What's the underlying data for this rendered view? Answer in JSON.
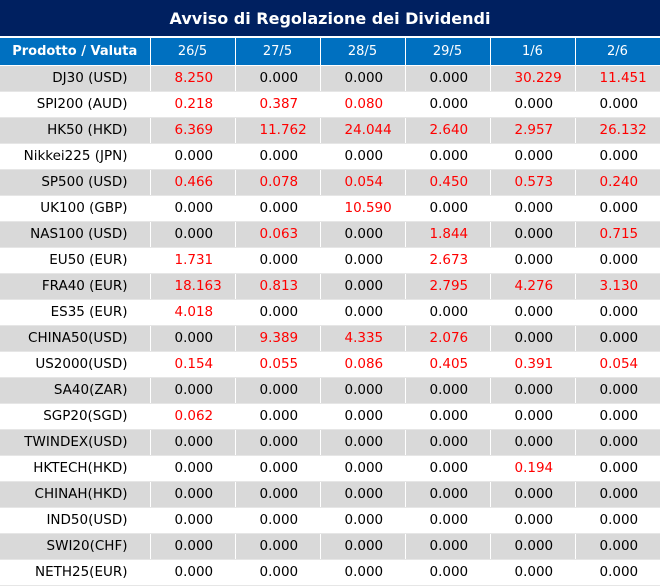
{
  "title": "Avviso di Regolazione dei Dividendi",
  "colors": {
    "title_bg": "#002060",
    "header_bg": "#0070c0",
    "shade_row": "#d9d9d9",
    "positive_value": "#ff0000"
  },
  "headers": [
    "Prodotto / Valuta",
    "26/5",
    "27/5",
    "28/5",
    "29/5",
    "1/6",
    "2/6"
  ],
  "rows": [
    {
      "name": "DJ30 (USD)",
      "values": [
        "8.250",
        "0.000",
        "0.000",
        "0.000",
        "30.229",
        "11.451"
      ],
      "red": [
        true,
        false,
        false,
        false,
        true,
        true
      ]
    },
    {
      "name": "SPI200 (AUD)",
      "values": [
        "0.218",
        "0.387",
        "0.080",
        "0.000",
        "0.000",
        "0.000"
      ],
      "red": [
        true,
        true,
        true,
        false,
        false,
        false
      ]
    },
    {
      "name": "HK50 (HKD)",
      "values": [
        "6.369",
        "11.762",
        "24.044",
        "2.640",
        "2.957",
        "26.132"
      ],
      "red": [
        true,
        true,
        true,
        true,
        true,
        true
      ]
    },
    {
      "name": "Nikkei225 (JPN)",
      "values": [
        "0.000",
        "0.000",
        "0.000",
        "0.000",
        "0.000",
        "0.000"
      ],
      "red": [
        false,
        false,
        false,
        false,
        false,
        false
      ]
    },
    {
      "name": "SP500 (USD)",
      "values": [
        "0.466",
        "0.078",
        "0.054",
        "0.450",
        "0.573",
        "0.240"
      ],
      "red": [
        true,
        true,
        true,
        true,
        true,
        true
      ]
    },
    {
      "name": "UK100 (GBP)",
      "values": [
        "0.000",
        "0.000",
        "10.590",
        "0.000",
        "0.000",
        "0.000"
      ],
      "red": [
        false,
        false,
        true,
        false,
        false,
        false
      ]
    },
    {
      "name": "NAS100 (USD)",
      "values": [
        "0.000",
        "0.063",
        "0.000",
        "1.844",
        "0.000",
        "0.715"
      ],
      "red": [
        false,
        true,
        false,
        true,
        false,
        true
      ]
    },
    {
      "name": "EU50 (EUR)",
      "values": [
        "1.731",
        "0.000",
        "0.000",
        "2.673",
        "0.000",
        "0.000"
      ],
      "red": [
        true,
        false,
        false,
        true,
        false,
        false
      ]
    },
    {
      "name": "FRA40 (EUR)",
      "values": [
        "18.163",
        "0.813",
        "0.000",
        "2.795",
        "4.276",
        "3.130"
      ],
      "red": [
        true,
        true,
        false,
        true,
        true,
        true
      ]
    },
    {
      "name": "ES35 (EUR)",
      "values": [
        "4.018",
        "0.000",
        "0.000",
        "0.000",
        "0.000",
        "0.000"
      ],
      "red": [
        true,
        false,
        false,
        false,
        false,
        false
      ]
    },
    {
      "name": "CHINA50(USD)",
      "values": [
        "0.000",
        "9.389",
        "4.335",
        "2.076",
        "0.000",
        "0.000"
      ],
      "red": [
        false,
        true,
        true,
        true,
        false,
        false
      ]
    },
    {
      "name": "US2000(USD)",
      "values": [
        "0.154",
        "0.055",
        "0.086",
        "0.405",
        "0.391",
        "0.054"
      ],
      "red": [
        true,
        true,
        true,
        true,
        true,
        true
      ]
    },
    {
      "name": "SA40(ZAR)",
      "values": [
        "0.000",
        "0.000",
        "0.000",
        "0.000",
        "0.000",
        "0.000"
      ],
      "red": [
        false,
        false,
        false,
        false,
        false,
        false
      ]
    },
    {
      "name": "SGP20(SGD)",
      "values": [
        "0.062",
        "0.000",
        "0.000",
        "0.000",
        "0.000",
        "0.000"
      ],
      "red": [
        true,
        false,
        false,
        false,
        false,
        false
      ]
    },
    {
      "name": "TWINDEX(USD)",
      "values": [
        "0.000",
        "0.000",
        "0.000",
        "0.000",
        "0.000",
        "0.000"
      ],
      "red": [
        false,
        false,
        false,
        false,
        false,
        false
      ]
    },
    {
      "name": "HKTECH(HKD)",
      "values": [
        "0.000",
        "0.000",
        "0.000",
        "0.000",
        "0.194",
        "0.000"
      ],
      "red": [
        false,
        false,
        false,
        false,
        true,
        false
      ]
    },
    {
      "name": "CHINAH(HKD)",
      "values": [
        "0.000",
        "0.000",
        "0.000",
        "0.000",
        "0.000",
        "0.000"
      ],
      "red": [
        false,
        false,
        false,
        false,
        false,
        false
      ]
    },
    {
      "name": "IND50(USD)",
      "values": [
        "0.000",
        "0.000",
        "0.000",
        "0.000",
        "0.000",
        "0.000"
      ],
      "red": [
        false,
        false,
        false,
        false,
        false,
        false
      ]
    },
    {
      "name": "SWI20(CHF)",
      "values": [
        "0.000",
        "0.000",
        "0.000",
        "0.000",
        "0.000",
        "0.000"
      ],
      "red": [
        false,
        false,
        false,
        false,
        false,
        false
      ]
    },
    {
      "name": "NETH25(EUR)",
      "values": [
        "0.000",
        "0.000",
        "0.000",
        "0.000",
        "0.000",
        "0.000"
      ],
      "red": [
        false,
        false,
        false,
        false,
        false,
        false
      ]
    }
  ]
}
